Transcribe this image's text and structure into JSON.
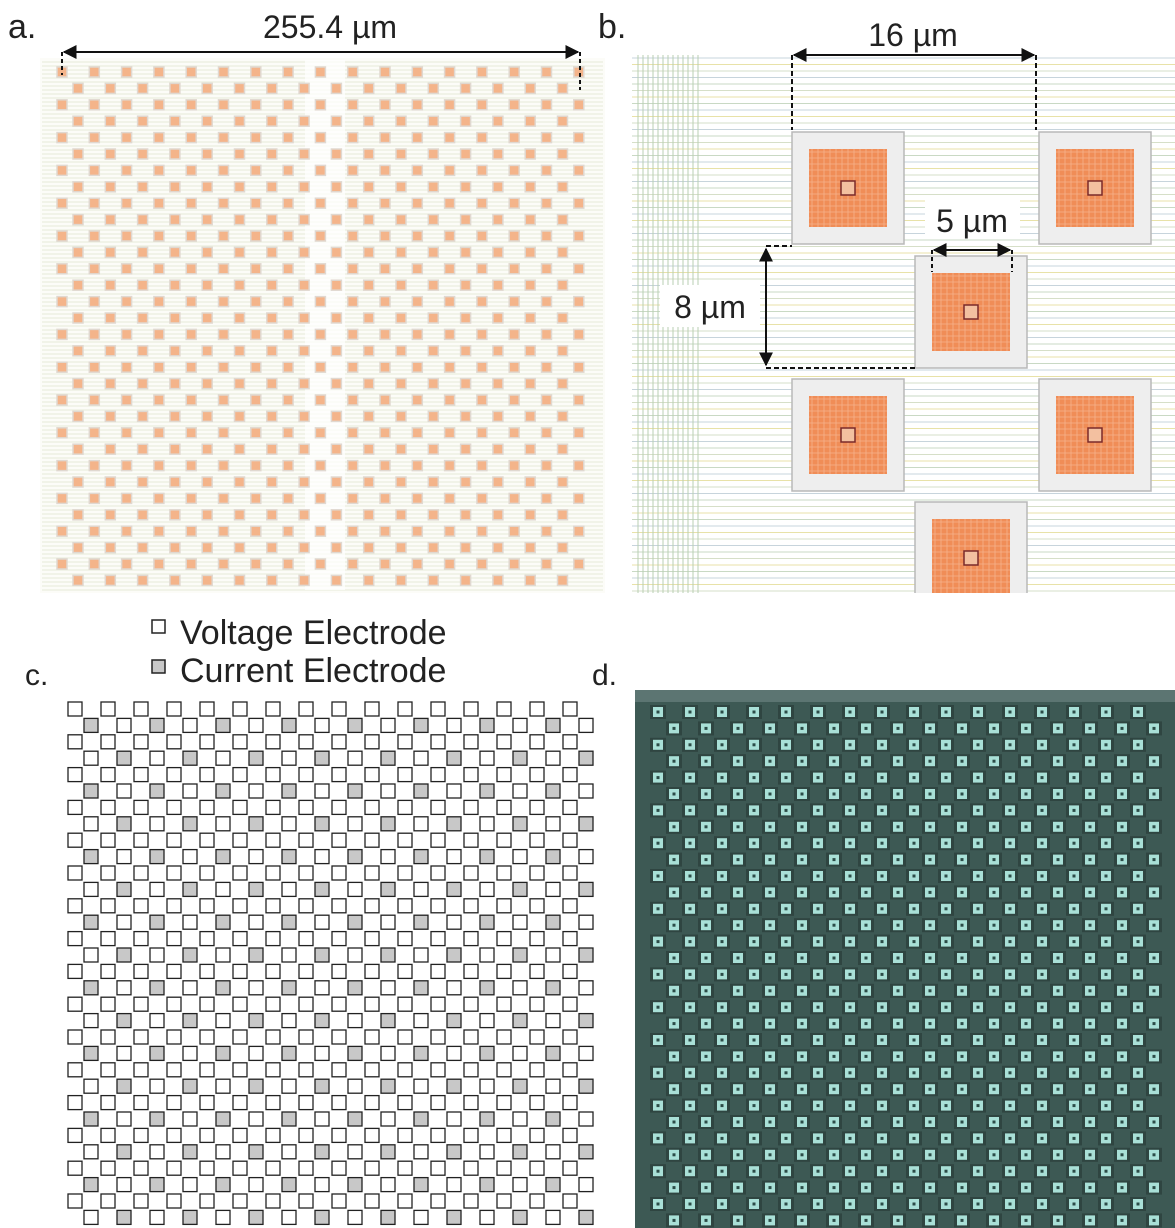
{
  "panels": {
    "a": {
      "label": "a.",
      "dimension": "255.4 µm"
    },
    "b": {
      "label": "b.",
      "dimensions": [
        "16 µm",
        "5 µm",
        "8 µm"
      ]
    },
    "c": {
      "label": "c.",
      "legend": [
        "Voltage Electrode",
        "Current Electrode"
      ]
    },
    "d": {
      "label": "d."
    }
  }
}
